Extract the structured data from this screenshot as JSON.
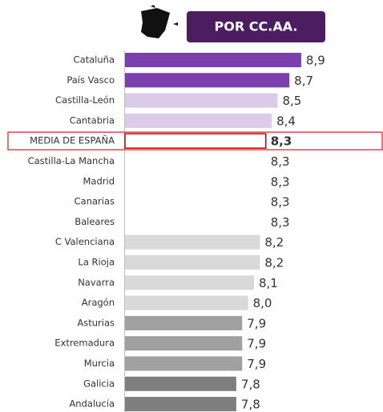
{
  "chart_data": {
    "type": "barh",
    "title": "POR CC.AA.",
    "categories": [
      "Cataluña",
      "País Vasco",
      "Castilla-León",
      "Cantabria",
      "MEDIA DE ESPAÑA",
      "Castilla-La Mancha",
      "Madrid",
      "Canarias",
      "Baleares",
      "C Valenciana",
      "La Rioja",
      "Navarra",
      "Aragón",
      "Asturias",
      "Extremadura",
      "Murcia",
      "Galicia",
      "Andalucía"
    ],
    "values": [
      8.9,
      8.7,
      8.5,
      8.4,
      8.3,
      8.3,
      8.3,
      8.3,
      8.3,
      8.2,
      8.2,
      8.1,
      8.0,
      7.9,
      7.9,
      7.9,
      7.8,
      7.8
    ],
    "value_labels": [
      "8,9",
      "8,7",
      "8,5",
      "8,4",
      "8,3",
      "8,3",
      "8,3",
      "8,3",
      "8,3",
      "8,2",
      "8,2",
      "8,1",
      "8,0",
      "7,9",
      "7,9",
      "7,9",
      "7,8",
      "7,8"
    ],
    "colors": [
      "#7b3fae",
      "#7b3fae",
      "#dccbe8",
      "#dccbe8",
      "#ffffff",
      "#ffffff",
      "#ffffff",
      "#ffffff",
      "#ffffff",
      "#d9d9d9",
      "#d9d9d9",
      "#d9d9d9",
      "#d9d9d9",
      "#a0a0a0",
      "#a0a0a0",
      "#a0a0a0",
      "#7f7f7f",
      "#7f7f7f"
    ],
    "highlight_index": 4,
    "xlim": [
      5.9,
      9.2
    ]
  }
}
